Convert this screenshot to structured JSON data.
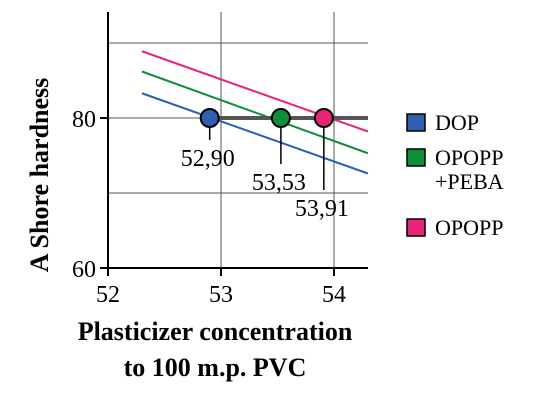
{
  "chart_data": {
    "type": "line",
    "title": "",
    "xlabel": [
      "Plasticizer concentration",
      "to 100 m.p. PVC"
    ],
    "ylabel": "A Shore hardness",
    "xlim": [
      52,
      54.3
    ],
    "ylim": [
      60,
      92
    ],
    "xticks": [
      52,
      53,
      54
    ],
    "yticks": [
      60,
      80
    ],
    "grid": true,
    "series": [
      {
        "name": "DOP",
        "color": "#2f5fb0",
        "x": [
          52.3,
          54.3
        ],
        "y": [
          83.3,
          72.6
        ]
      },
      {
        "name": "OPOPP +PEBA",
        "color": "#0f8f3a",
        "x": [
          52.3,
          54.3
        ],
        "y": [
          86.2,
          75.3
        ]
      },
      {
        "name": "OPOPP",
        "color": "#e8247a",
        "x": [
          52.3,
          54.3
        ],
        "y": [
          88.9,
          78.2
        ]
      }
    ],
    "reference_line": {
      "y": 80,
      "color": "#555555"
    },
    "points": [
      {
        "x": 52.9,
        "y": 80,
        "label": "52,90",
        "color": "#2f5fb0"
      },
      {
        "x": 53.53,
        "y": 80,
        "label": "53,53",
        "color": "#0f8f3a"
      },
      {
        "x": 53.91,
        "y": 80,
        "label": "53,91",
        "color": "#e8247a"
      }
    ],
    "legend": {
      "placement": "right",
      "entries": [
        {
          "lines": [
            "DOP"
          ],
          "color": "#2f5fb0"
        },
        {
          "lines": [
            "OPOPP",
            "+PEBA"
          ],
          "color": "#0f8f3a"
        },
        {
          "lines": [
            "OPOPP"
          ],
          "color": "#e8247a"
        }
      ]
    }
  }
}
